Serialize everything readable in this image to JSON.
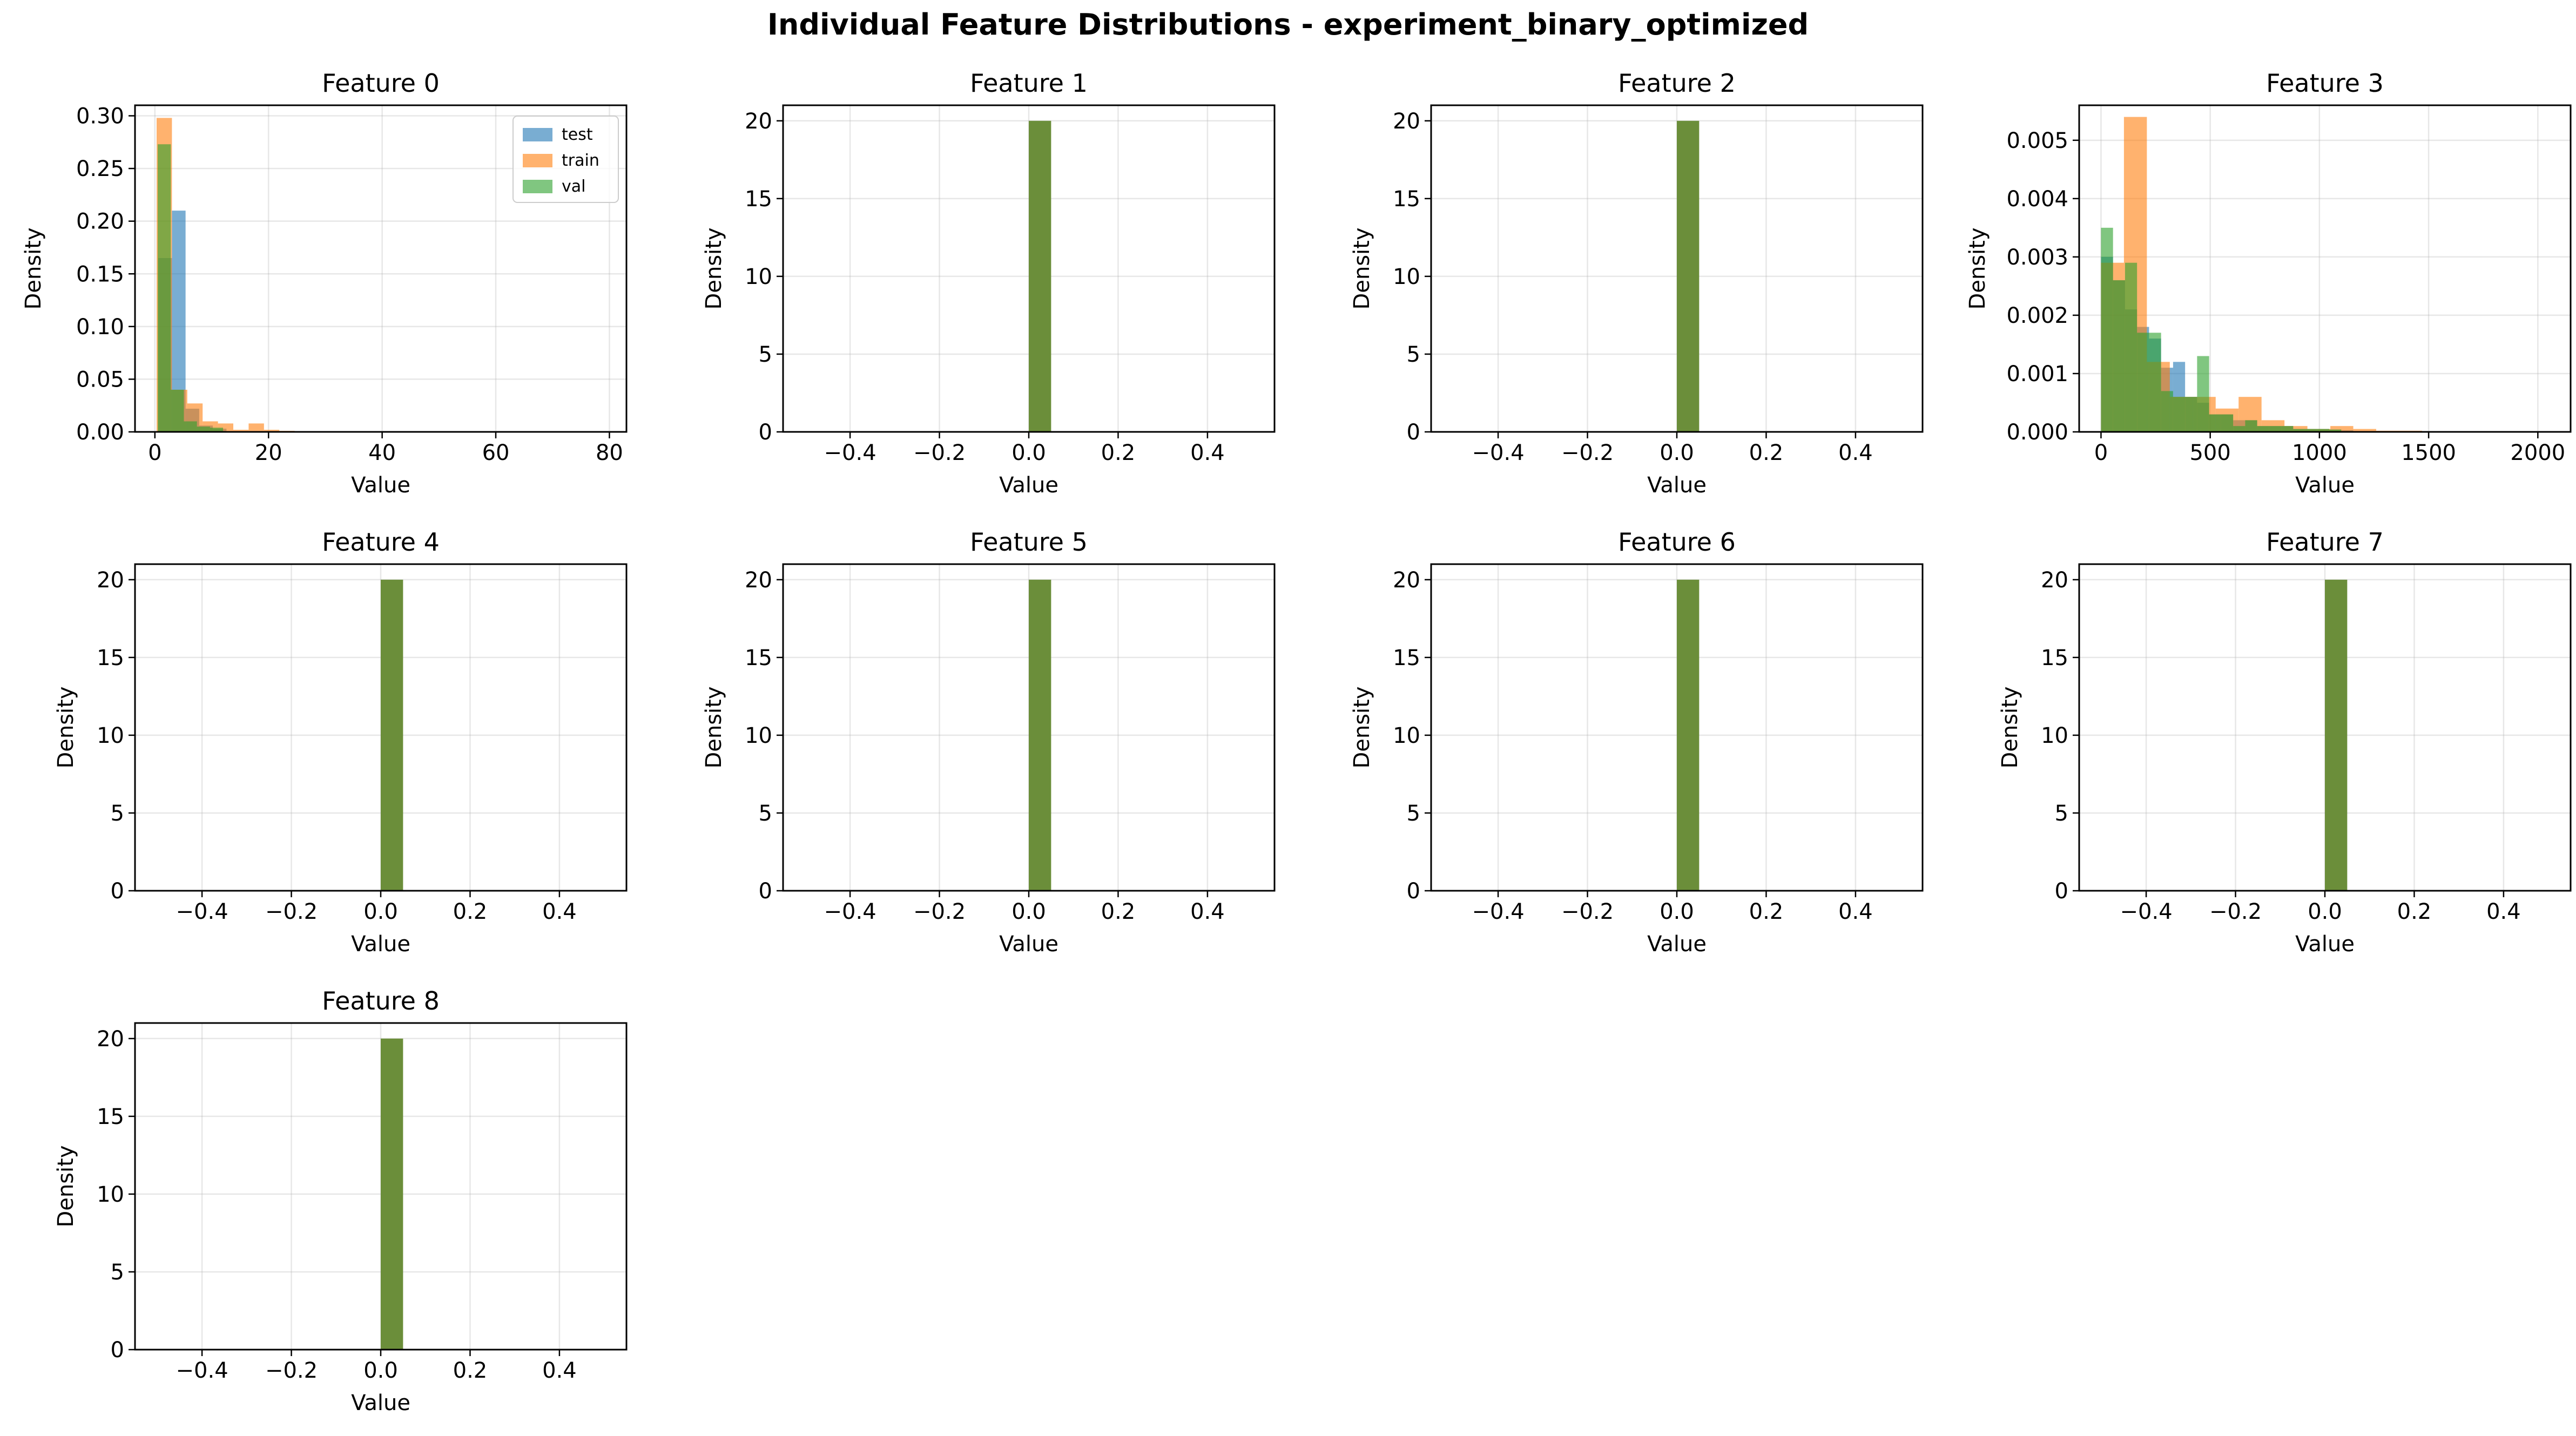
{
  "title": "Individual Feature Distributions - experiment_binary_optimized",
  "colors": {
    "test": "#1f77b4",
    "train": "#ff7f0e",
    "val": "#2ca02c",
    "overlap": "#6b8e3a"
  },
  "chart_data": [
    {
      "type": "bar",
      "title": "Feature 0",
      "xlabel": "Value",
      "ylabel": "Density",
      "xlim": [
        -3.5,
        83
      ],
      "ylim": [
        0,
        0.31
      ],
      "xticks": [
        0,
        20,
        40,
        60,
        80
      ],
      "yticks": [
        0,
        0.05,
        0.1,
        0.15,
        0.2,
        0.25,
        0.3
      ],
      "ytick_labels": [
        "0.00",
        "0.05",
        "0.10",
        "0.15",
        "0.20",
        "0.25",
        "0.30"
      ],
      "grid": true,
      "legend": "top-right",
      "series": [
        {
          "name": "test",
          "bin_width": 2.4,
          "bins_start": [
            0.6,
            3.0,
            5.4,
            7.8,
            10.2
          ],
          "values": [
            0.165,
            0.21,
            0.022,
            0.006,
            0.003
          ]
        },
        {
          "name": "train",
          "bin_width": 2.7,
          "bins_start": [
            0.3,
            3.0,
            5.7,
            8.4,
            11.1,
            13.8,
            16.5,
            19.2,
            21.9
          ],
          "values": [
            0.298,
            0.04,
            0.027,
            0.01,
            0.008,
            0.002,
            0.008,
            0.002,
            0.001
          ]
        },
        {
          "name": "val",
          "bin_width": 2.3,
          "bins_start": [
            0.5,
            2.8,
            5.1,
            7.4,
            9.7
          ],
          "values": [
            0.273,
            0.04,
            0.01,
            0.005,
            0.004
          ]
        }
      ]
    },
    {
      "type": "bar",
      "title": "Feature 1",
      "xlabel": "Value",
      "ylabel": "Density",
      "xlim": [
        -0.55,
        0.55
      ],
      "ylim": [
        0,
        21
      ],
      "xticks": [
        -0.4,
        -0.2,
        0.0,
        0.2,
        0.4
      ],
      "xtick_labels": [
        "−0.4",
        "−0.2",
        "0.0",
        "0.2",
        "0.4"
      ],
      "yticks": [
        0,
        5,
        10,
        15,
        20
      ],
      "grid": true,
      "bar": {
        "x": [
          0.0,
          0.05
        ],
        "value": 20
      }
    },
    {
      "type": "bar",
      "title": "Feature 2",
      "xlabel": "Value",
      "ylabel": "Density",
      "xlim": [
        -0.55,
        0.55
      ],
      "ylim": [
        0,
        21
      ],
      "xticks": [
        -0.4,
        -0.2,
        0.0,
        0.2,
        0.4
      ],
      "xtick_labels": [
        "−0.4",
        "−0.2",
        "0.0",
        "0.2",
        "0.4"
      ],
      "yticks": [
        0,
        5,
        10,
        15,
        20
      ],
      "grid": true,
      "bar": {
        "x": [
          0.0,
          0.05
        ],
        "value": 20
      }
    },
    {
      "type": "bar",
      "title": "Feature 3",
      "xlabel": "Value",
      "ylabel": "Density",
      "xlim": [
        -100,
        2150
      ],
      "ylim": [
        0,
        0.0056
      ],
      "xticks": [
        0,
        500,
        1000,
        1500,
        2000
      ],
      "yticks": [
        0,
        0.001,
        0.002,
        0.003,
        0.004,
        0.005
      ],
      "ytick_labels": [
        "0.000",
        "0.001",
        "0.002",
        "0.003",
        "0.004",
        "0.005"
      ],
      "grid": true,
      "series": [
        {
          "name": "test",
          "bin_width": 55,
          "bins_start": [
            0,
            55,
            110,
            165,
            220,
            275,
            330,
            385,
            440,
            495,
            550,
            605,
            660,
            715,
            770,
            825,
            880,
            935,
            990,
            1045,
            1100
          ],
          "values": [
            0.003,
            0.0026,
            0.0021,
            0.0018,
            0.0016,
            0.0011,
            0.0012,
            0.0006,
            0.0005,
            0.0003,
            0.0003,
            0.0002,
            0.0002,
            0.0001,
            0.0001,
            0.0001,
            5e-05,
            5e-05,
            5e-05,
            4e-05,
            3e-05
          ]
        },
        {
          "name": "train",
          "bin_width": 105,
          "bins_start": [
            0,
            105,
            210,
            315,
            420,
            525,
            630,
            735,
            840,
            945,
            1050,
            1155,
            1260,
            1365,
            1470,
            1575,
            1680,
            1785,
            1890,
            1995
          ],
          "values": [
            0.0029,
            0.0054,
            0.0012,
            0.0006,
            0.0006,
            0.0004,
            0.0006,
            0.0002,
            0.0001,
            5e-05,
            0.0001,
            5e-05,
            2e-05,
            2e-05,
            1e-05,
            1e-05,
            1e-05,
            1e-05,
            1e-05,
            1e-05
          ]
        },
        {
          "name": "val",
          "bin_width": 55,
          "bins_start": [
            0,
            55,
            110,
            165,
            220,
            275,
            330,
            385,
            440,
            495,
            550,
            605,
            660,
            715,
            770,
            825,
            880,
            935,
            990,
            1045
          ],
          "values": [
            0.0035,
            0.0026,
            0.0029,
            0.0017,
            0.0017,
            0.0007,
            0.0006,
            0.0006,
            0.0013,
            0.0003,
            0.0003,
            0.0001,
            0.0002,
            0.0001,
            0.0001,
            0.0001,
            5e-05,
            5e-05,
            5e-05,
            4e-05
          ]
        }
      ]
    },
    {
      "type": "bar",
      "title": "Feature 4",
      "xlabel": "Value",
      "ylabel": "Density",
      "xlim": [
        -0.55,
        0.55
      ],
      "ylim": [
        0,
        21
      ],
      "xticks": [
        -0.4,
        -0.2,
        0.0,
        0.2,
        0.4
      ],
      "xtick_labels": [
        "−0.4",
        "−0.2",
        "0.0",
        "0.2",
        "0.4"
      ],
      "yticks": [
        0,
        5,
        10,
        15,
        20
      ],
      "grid": true,
      "bar": {
        "x": [
          0.0,
          0.05
        ],
        "value": 20
      }
    },
    {
      "type": "bar",
      "title": "Feature 5",
      "xlabel": "Value",
      "ylabel": "Density",
      "xlim": [
        -0.55,
        0.55
      ],
      "ylim": [
        0,
        21
      ],
      "xticks": [
        -0.4,
        -0.2,
        0.0,
        0.2,
        0.4
      ],
      "xtick_labels": [
        "−0.4",
        "−0.2",
        "0.0",
        "0.2",
        "0.4"
      ],
      "yticks": [
        0,
        5,
        10,
        15,
        20
      ],
      "grid": true,
      "bar": {
        "x": [
          0.0,
          0.05
        ],
        "value": 20
      }
    },
    {
      "type": "bar",
      "title": "Feature 6",
      "xlabel": "Value",
      "ylabel": "Density",
      "xlim": [
        -0.55,
        0.55
      ],
      "ylim": [
        0,
        21
      ],
      "xticks": [
        -0.4,
        -0.2,
        0.0,
        0.2,
        0.4
      ],
      "xtick_labels": [
        "−0.4",
        "−0.2",
        "0.0",
        "0.2",
        "0.4"
      ],
      "yticks": [
        0,
        5,
        10,
        15,
        20
      ],
      "grid": true,
      "bar": {
        "x": [
          0.0,
          0.05
        ],
        "value": 20
      }
    },
    {
      "type": "bar",
      "title": "Feature 7",
      "xlabel": "Value",
      "ylabel": "Density",
      "xlim": [
        -0.55,
        0.55
      ],
      "ylim": [
        0,
        21
      ],
      "xticks": [
        -0.4,
        -0.2,
        0.0,
        0.2,
        0.4
      ],
      "xtick_labels": [
        "−0.4",
        "−0.2",
        "0.0",
        "0.2",
        "0.4"
      ],
      "yticks": [
        0,
        5,
        10,
        15,
        20
      ],
      "grid": true,
      "bar": {
        "x": [
          0.0,
          0.05
        ],
        "value": 20
      }
    },
    {
      "type": "bar",
      "title": "Feature 8",
      "xlabel": "Value",
      "ylabel": "Density",
      "xlim": [
        -0.55,
        0.55
      ],
      "ylim": [
        0,
        21
      ],
      "xticks": [
        -0.4,
        -0.2,
        0.0,
        0.2,
        0.4
      ],
      "xtick_labels": [
        "−0.4",
        "−0.2",
        "0.0",
        "0.2",
        "0.4"
      ],
      "yticks": [
        0,
        5,
        10,
        15,
        20
      ],
      "grid": true,
      "bar": {
        "x": [
          0.0,
          0.05
        ],
        "value": 20
      }
    }
  ]
}
